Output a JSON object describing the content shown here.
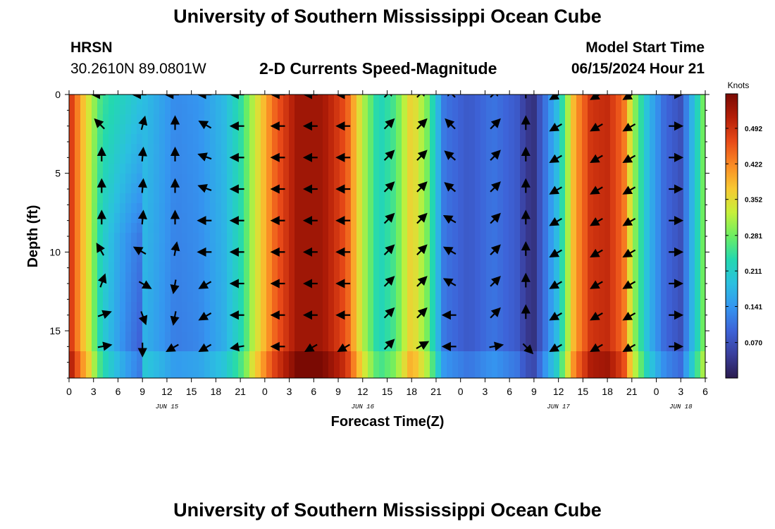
{
  "header": {
    "title": "University of Southern Mississippi Ocean Cube",
    "station": "HRSN",
    "coords": "30.2610N  89.0801W",
    "subtitle": "2-D Currents Speed-Magnitude",
    "model_start_label": "Model Start Time",
    "model_start_value": "06/15/2024 Hour 21"
  },
  "footer": {
    "title": "University of Southern Mississippi Ocean Cube"
  },
  "colors": {
    "ramp": [
      "#2a1b4e",
      "#3a3f9c",
      "#3d63d8",
      "#3596f0",
      "#2bc0e0",
      "#23d8b0",
      "#6cee62",
      "#c7f03a",
      "#f8c832",
      "#fa8a24",
      "#e84a18",
      "#b41e08",
      "#7a0a03"
    ]
  },
  "chart_data": {
    "type": "heatmap",
    "title": "2-D Currents Speed-Magnitude",
    "xlabel": "Forecast Time(Z)",
    "ylabel": "Depth (ft)",
    "x_range_hours": [
      0,
      78
    ],
    "y_range_ft": [
      0,
      18
    ],
    "x_ticks": [
      {
        "h": 0,
        "label": "0"
      },
      {
        "h": 3,
        "label": "3"
      },
      {
        "h": 6,
        "label": "6"
      },
      {
        "h": 9,
        "label": "9"
      },
      {
        "h": 12,
        "label": "12"
      },
      {
        "h": 15,
        "label": "15"
      },
      {
        "h": 18,
        "label": "18"
      },
      {
        "h": 21,
        "label": "21"
      },
      {
        "h": 24,
        "label": "0"
      },
      {
        "h": 27,
        "label": "3"
      },
      {
        "h": 30,
        "label": "6"
      },
      {
        "h": 33,
        "label": "9"
      },
      {
        "h": 36,
        "label": "12"
      },
      {
        "h": 39,
        "label": "15"
      },
      {
        "h": 42,
        "label": "18"
      },
      {
        "h": 45,
        "label": "21"
      },
      {
        "h": 48,
        "label": "0"
      },
      {
        "h": 51,
        "label": "3"
      },
      {
        "h": 54,
        "label": "6"
      },
      {
        "h": 57,
        "label": "9"
      },
      {
        "h": 60,
        "label": "12"
      },
      {
        "h": 63,
        "label": "15"
      },
      {
        "h": 66,
        "label": "18"
      },
      {
        "h": 69,
        "label": "21"
      },
      {
        "h": 72,
        "label": "0"
      },
      {
        "h": 75,
        "label": "3"
      },
      {
        "h": 78,
        "label": "6"
      }
    ],
    "date_labels": [
      {
        "h": 12,
        "label": "JUN 15"
      },
      {
        "h": 36,
        "label": "JUN 16"
      },
      {
        "h": 60,
        "label": "JUN 17"
      },
      {
        "h": 75,
        "label": "JUN 18"
      }
    ],
    "y_ticks": [
      {
        "v": 0,
        "label": "0"
      },
      {
        "v": 5,
        "label": "5"
      },
      {
        "v": 10,
        "label": "10"
      },
      {
        "v": 15,
        "label": "15"
      }
    ],
    "colorbar": {
      "title": "Knots",
      "range": [
        0.0,
        0.56
      ],
      "ticks": [
        0.07,
        0.141,
        0.211,
        0.281,
        0.352,
        0.422,
        0.492
      ],
      "tick_labels": [
        "0.070",
        "0.141",
        "0.211",
        "0.281",
        "0.352",
        "0.422",
        "0.492"
      ]
    },
    "speed_profile_surface_knots": [
      {
        "h": 0,
        "v": 0.5
      },
      {
        "h": 2,
        "v": 0.36
      },
      {
        "h": 4,
        "v": 0.25
      },
      {
        "h": 8,
        "v": 0.2
      },
      {
        "h": 11,
        "v": 0.16
      },
      {
        "h": 13,
        "v": 0.13
      },
      {
        "h": 16,
        "v": 0.14
      },
      {
        "h": 19,
        "v": 0.18
      },
      {
        "h": 21,
        "v": 0.24
      },
      {
        "h": 23,
        "v": 0.34
      },
      {
        "h": 25,
        "v": 0.44
      },
      {
        "h": 28,
        "v": 0.53
      },
      {
        "h": 31,
        "v": 0.53
      },
      {
        "h": 34,
        "v": 0.46
      },
      {
        "h": 36,
        "v": 0.32
      },
      {
        "h": 38,
        "v": 0.22
      },
      {
        "h": 40,
        "v": 0.26
      },
      {
        "h": 42,
        "v": 0.37
      },
      {
        "h": 44,
        "v": 0.28
      },
      {
        "h": 46,
        "v": 0.11
      },
      {
        "h": 49,
        "v": 0.08
      },
      {
        "h": 52,
        "v": 0.11
      },
      {
        "h": 55,
        "v": 0.08
      },
      {
        "h": 56,
        "v": 0.04
      },
      {
        "h": 57,
        "v": 0.03
      },
      {
        "h": 58,
        "v": 0.09
      },
      {
        "h": 60,
        "v": 0.19
      },
      {
        "h": 62,
        "v": 0.4
      },
      {
        "h": 64,
        "v": 0.49
      },
      {
        "h": 66,
        "v": 0.5
      },
      {
        "h": 68,
        "v": 0.44
      },
      {
        "h": 69,
        "v": 0.32
      },
      {
        "h": 71,
        "v": 0.18
      },
      {
        "h": 73,
        "v": 0.1
      },
      {
        "h": 75,
        "v": 0.07
      },
      {
        "h": 77,
        "v": 0.22
      },
      {
        "h": 78,
        "v": 0.3
      }
    ],
    "vector_rows_ft": [
      0,
      2,
      4,
      6,
      8,
      10,
      12,
      14,
      16
    ],
    "vector_cols": [
      {
        "h": 4,
        "dirs": [
          270,
          315,
          0,
          0,
          0,
          330,
          20,
          70,
          80
        ]
      },
      {
        "h": 9,
        "dirs": [
          270,
          15,
          5,
          5,
          5,
          300,
          120,
          160,
          180
        ]
      },
      {
        "h": 13,
        "dirs": [
          270,
          0,
          0,
          0,
          0,
          10,
          190,
          190,
          240
        ]
      },
      {
        "h": 17,
        "dirs": [
          270,
          300,
          290,
          290,
          270,
          270,
          240,
          240,
          240
        ]
      },
      {
        "h": 21,
        "dirs": [
          270,
          270,
          270,
          270,
          270,
          270,
          270,
          270,
          260
        ]
      },
      {
        "h": 26,
        "dirs": [
          270,
          270,
          270,
          270,
          270,
          270,
          270,
          270,
          270
        ]
      },
      {
        "h": 30,
        "dirs": [
          270,
          270,
          270,
          270,
          270,
          270,
          270,
          270,
          240
        ]
      },
      {
        "h": 34,
        "dirs": [
          270,
          270,
          270,
          270,
          270,
          270,
          270,
          270,
          240
        ]
      },
      {
        "h": 39,
        "dirs": [
          45,
          45,
          45,
          45,
          45,
          45,
          45,
          45,
          45
        ]
      },
      {
        "h": 43,
        "dirs": [
          45,
          45,
          45,
          45,
          45,
          45,
          45,
          45,
          60
        ]
      },
      {
        "h": 47,
        "dirs": [
          315,
          315,
          310,
          310,
          300,
          300,
          300,
          270,
          270
        ]
      },
      {
        "h": 52,
        "dirs": [
          45,
          45,
          45,
          45,
          45,
          45,
          45,
          45,
          80
        ]
      },
      {
        "h": 56,
        "dirs": [
          0,
          0,
          0,
          0,
          0,
          0,
          0,
          0,
          135
        ]
      },
      {
        "h": 60,
        "dirs": [
          240,
          240,
          240,
          240,
          240,
          240,
          240,
          240,
          240
        ]
      },
      {
        "h": 65,
        "dirs": [
          240,
          240,
          240,
          240,
          240,
          240,
          240,
          240,
          240
        ]
      },
      {
        "h": 69,
        "dirs": [
          240,
          240,
          240,
          240,
          240,
          240,
          240,
          240,
          240
        ]
      },
      {
        "h": 74,
        "dirs": [
          90,
          90,
          90,
          90,
          90,
          90,
          90,
          90,
          90
        ]
      }
    ]
  }
}
